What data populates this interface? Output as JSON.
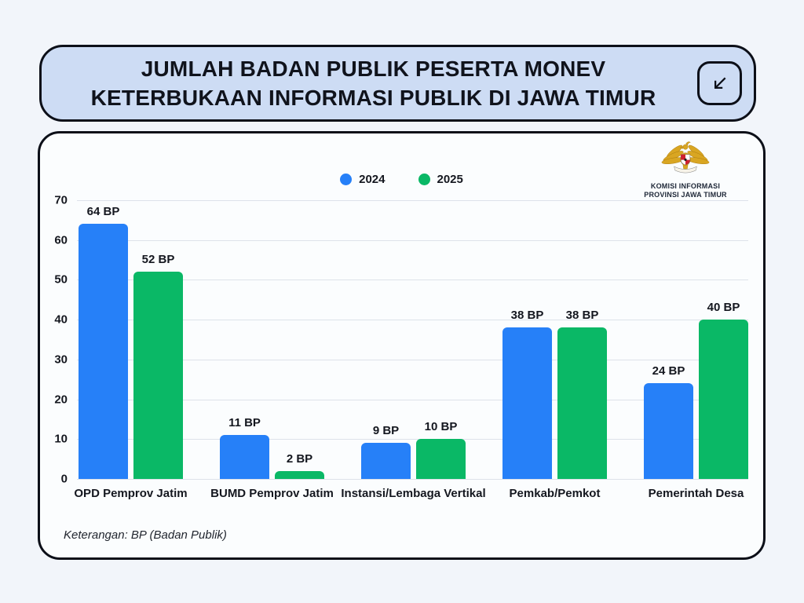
{
  "page": {
    "title_line1": "JUMLAH BADAN PUBLIK PESERTA MONEV",
    "title_line2": "KETERBUKAAN INFORMASI PUBLIK DI JAWA TIMUR",
    "footer_note": "Keterangan: BP (Badan Publik)",
    "logo": {
      "org_line1": "KOMISI INFORMASI",
      "org_line2": "PROVINSI JAWA TIMUR"
    },
    "corner_icon": "arrow-down-left"
  },
  "colors": {
    "series_2024": "#2680f8",
    "series_2025": "#0ab866",
    "title_card_bg": "#cddcf4",
    "card_bg": "#fbfdfe",
    "page_bg": "#f2f5fa",
    "border": "#0c0f18",
    "grid": "#dde2ea",
    "text": "#14171f"
  },
  "chart_data": {
    "type": "bar",
    "title": "",
    "categories": [
      "OPD Pemprov Jatim",
      "BUMD Pemprov Jatim",
      "Instansi/Lembaga Vertikal",
      "Pemkab/Pemkot",
      "Pemerintah Desa"
    ],
    "series": [
      {
        "name": "2024",
        "color": "#2680f8",
        "values": [
          64,
          11,
          9,
          38,
          24
        ]
      },
      {
        "name": "2025",
        "color": "#0ab866",
        "values": [
          52,
          2,
          10,
          38,
          40
        ]
      }
    ],
    "value_suffix": " BP",
    "ylim": [
      0,
      70
    ],
    "yticks": [
      0,
      10,
      20,
      30,
      40,
      50,
      60,
      70
    ],
    "grid": true,
    "legend_position": "top-center"
  }
}
